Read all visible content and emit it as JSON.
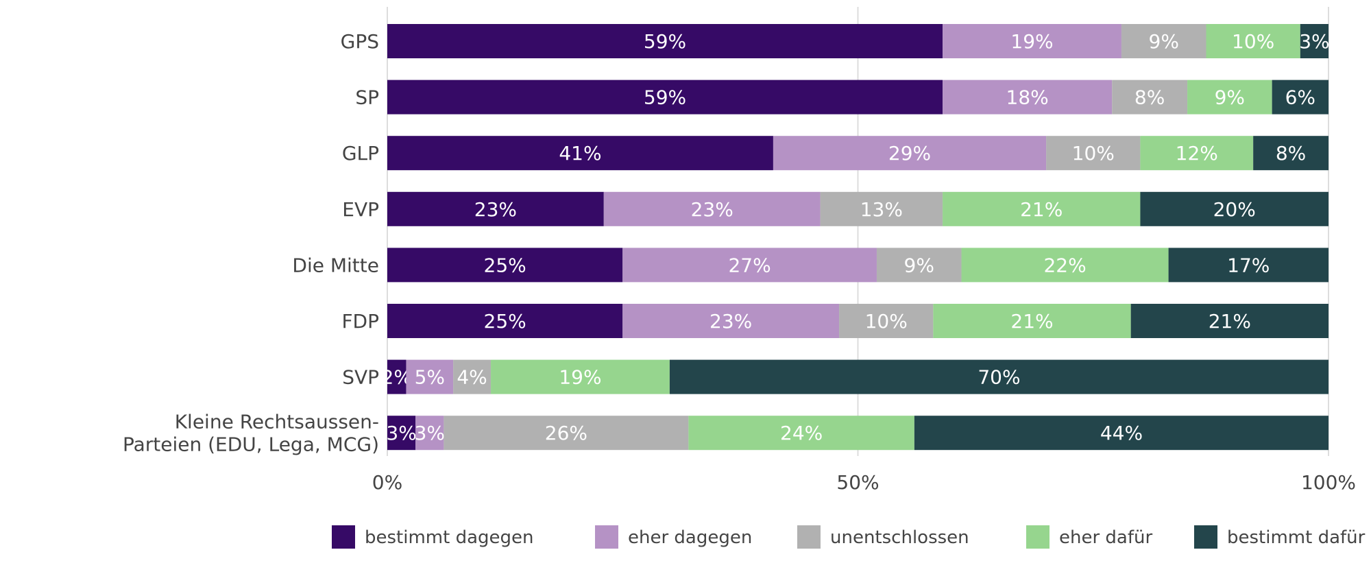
{
  "chart_data": {
    "type": "bar",
    "orientation": "horizontal",
    "stacked": true,
    "categories": [
      [
        "GPS"
      ],
      [
        "SP"
      ],
      [
        "GLP"
      ],
      [
        "EVP"
      ],
      [
        "Die Mitte"
      ],
      [
        "FDP"
      ],
      [
        "SVP"
      ],
      [
        "Kleine Rechtsaussen-",
        "Parteien (EDU, Lega, MCG)"
      ]
    ],
    "series": [
      {
        "name": "bestimmt dagegen",
        "color": "#360a66",
        "values": [
          59,
          59,
          41,
          23,
          25,
          25,
          2,
          3
        ]
      },
      {
        "name": "eher dagegen",
        "color": "#b592c5",
        "values": [
          19,
          18,
          29,
          23,
          27,
          23,
          5,
          3
        ]
      },
      {
        "name": "unentschlossen",
        "color": "#b1b1b1",
        "values": [
          9,
          8,
          10,
          13,
          9,
          10,
          4,
          26
        ]
      },
      {
        "name": "eher dafür",
        "color": "#96d58e",
        "values": [
          10,
          9,
          12,
          21,
          22,
          21,
          19,
          24
        ]
      },
      {
        "name": "bestimmt dafür",
        "color": "#23454b",
        "values": [
          3,
          6,
          8,
          20,
          17,
          21,
          70,
          44
        ]
      }
    ],
    "xlim": [
      0,
      100
    ],
    "x_ticks": [
      {
        "value": 0,
        "label": "0%"
      },
      {
        "value": 50,
        "label": "50%"
      },
      {
        "value": 100,
        "label": "100%"
      }
    ],
    "value_suffix": "%",
    "grid": true,
    "legend_position": "bottom"
  }
}
